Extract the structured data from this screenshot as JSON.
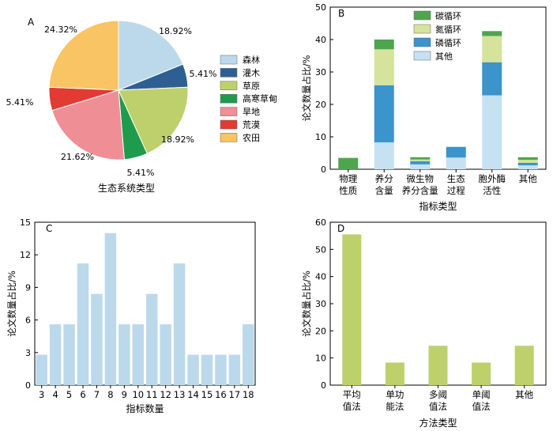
{
  "chart_data": [
    {
      "panel_label": "A",
      "type": "pie",
      "xlabel": "生态系统类型",
      "slices": [
        {
          "name": "森林",
          "value": 18.92,
          "label": "18.92%",
          "color": "#bcd9ec"
        },
        {
          "name": "灌木",
          "value": 5.41,
          "label": "5.41%",
          "color": "#2e5f92"
        },
        {
          "name": "草原",
          "value": 18.92,
          "label": "18.92%",
          "color": "#bed06b"
        },
        {
          "name": "高寒草甸",
          "value": 5.41,
          "label": "5.41%",
          "color": "#1e9b4c"
        },
        {
          "name": "旱地",
          "value": 21.62,
          "label": "21.62%",
          "color": "#ef8e95"
        },
        {
          "name": "荒漠",
          "value": 5.41,
          "label": "5.41%",
          "color": "#e13b33"
        },
        {
          "name": "农田",
          "value": 24.32,
          "label": "24.32%",
          "color": "#f9c464"
        }
      ]
    },
    {
      "panel_label": "B",
      "type": "bar",
      "stacked": true,
      "categories": [
        [
          "物理",
          "性质"
        ],
        [
          "养分",
          "含量"
        ],
        [
          "微生物",
          "养分含量"
        ],
        [
          "生态",
          "过程"
        ],
        [
          "胞外酶",
          "活性"
        ],
        [
          "其他"
        ]
      ],
      "series": [
        {
          "name": "其他",
          "color": "#c6e1f2",
          "values": [
            0,
            8.3,
            1.5,
            3.6,
            22.8,
            1.2
          ]
        },
        {
          "name": "磷循环",
          "color": "#3b94cc",
          "values": [
            0,
            17.6,
            1.0,
            3.3,
            10.2,
            0.8
          ]
        },
        {
          "name": "氮循环",
          "color": "#d5e39c",
          "values": [
            0,
            11.1,
            0.5,
            0,
            8.1,
            0.9
          ]
        },
        {
          "name": "碳循环",
          "color": "#4ea54e",
          "values": [
            3.5,
            3.0,
            0.7,
            0,
            1.5,
            0.8
          ]
        }
      ],
      "legend_order": [
        "碳循环",
        "氮循环",
        "磷循环",
        "其他"
      ],
      "xlabel": "指标类型",
      "ylabel": "论文数量占比/%",
      "ylim": [
        0,
        50
      ],
      "yticks": [
        0,
        10,
        20,
        30,
        40,
        50
      ],
      "legend_position": "top-right"
    },
    {
      "panel_label": "C",
      "type": "bar",
      "categories": [
        "3",
        "4",
        "5",
        "6",
        "7",
        "8",
        "9",
        "10",
        "11",
        "12",
        "13",
        "14",
        "15",
        "16",
        "17",
        "18"
      ],
      "values": [
        2.8,
        5.6,
        5.6,
        11.2,
        8.4,
        14.0,
        5.6,
        5.6,
        8.4,
        5.6,
        11.2,
        2.8,
        2.8,
        2.8,
        2.8,
        5.6
      ],
      "color": "#bcd9ec",
      "xlabel": "指标数量",
      "ylabel": "论文数量占比/%",
      "ylim": [
        0,
        15
      ],
      "yticks": [
        0,
        3,
        6,
        9,
        12,
        15
      ]
    },
    {
      "panel_label": "D",
      "type": "bar",
      "categories": [
        [
          "平均",
          "值法"
        ],
        [
          "单功",
          "能法"
        ],
        [
          "多阈",
          "值法"
        ],
        [
          "单阈",
          "值法"
        ],
        [
          "其他"
        ]
      ],
      "values": [
        55.5,
        8.3,
        14.5,
        8.3,
        14.5
      ],
      "color": "#bed06b",
      "xlabel": "方法类型",
      "ylabel": "论文数量占比/%",
      "ylim": [
        0,
        60
      ],
      "yticks": [
        0,
        10,
        20,
        30,
        40,
        50,
        60
      ]
    }
  ]
}
